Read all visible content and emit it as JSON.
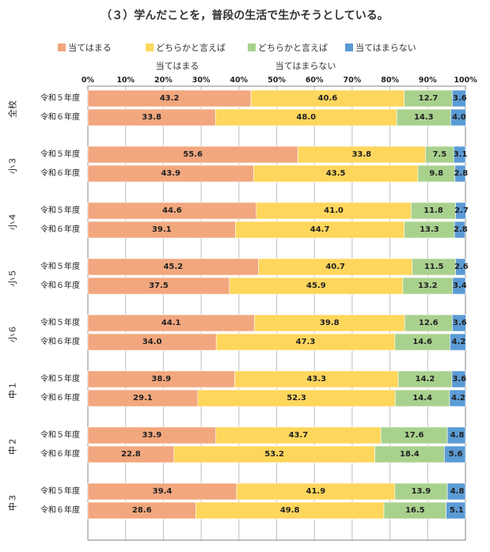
{
  "colors": {
    "s1": "#F2A77E",
    "s2": "#FFD65C",
    "s3": "#A9D18E",
    "s4": "#5B9BD5",
    "grid": "#BFBFBF",
    "border": "#808080"
  },
  "chart_data": {
    "type": "bar",
    "orientation": "horizontal-stacked",
    "title": "（３）学んだことを，普段の生活で生かそうとしている。",
    "legend": {
      "placement": "top",
      "entries": [
        "当てはまる",
        "どちらかと言えば",
        "どちらかと言えば",
        "当てはまらない"
      ]
    },
    "sub_labels": [
      "当てはまる",
      "当てはまらない"
    ],
    "x_ticks": [
      "0%",
      "10%",
      "20%",
      "30%",
      "40%",
      "50%",
      "60%",
      "70%",
      "80%",
      "90%",
      "100%"
    ],
    "xlim": [
      0,
      100
    ],
    "groups": [
      {
        "name": "全校",
        "rows": [
          {
            "label": "令和５年度",
            "values": [
              43.2,
              40.6,
              12.7,
              3.6
            ]
          },
          {
            "label": "令和６年度",
            "values": [
              33.8,
              48.0,
              14.3,
              4.0
            ]
          }
        ]
      },
      {
        "name": "小３",
        "rows": [
          {
            "label": "令和５年度",
            "values": [
              55.6,
              33.8,
              7.5,
              3.1
            ]
          },
          {
            "label": "令和６年度",
            "values": [
              43.9,
              43.5,
              9.8,
              2.8
            ]
          }
        ]
      },
      {
        "name": "小４",
        "rows": [
          {
            "label": "令和５年度",
            "values": [
              44.6,
              41.0,
              11.8,
              2.7
            ]
          },
          {
            "label": "令和６年度",
            "values": [
              39.1,
              44.7,
              13.3,
              2.8
            ]
          }
        ]
      },
      {
        "name": "小５",
        "rows": [
          {
            "label": "令和５年度",
            "values": [
              45.2,
              40.7,
              11.5,
              2.6
            ]
          },
          {
            "label": "令和６年度",
            "values": [
              37.5,
              45.9,
              13.2,
              3.4
            ]
          }
        ]
      },
      {
        "name": "小６",
        "rows": [
          {
            "label": "令和５年度",
            "values": [
              44.1,
              39.8,
              12.6,
              3.6
            ]
          },
          {
            "label": "令和６年度",
            "values": [
              34.0,
              47.3,
              14.6,
              4.2
            ]
          }
        ]
      },
      {
        "name": "中１",
        "rows": [
          {
            "label": "令和５年度",
            "values": [
              38.9,
              43.3,
              14.2,
              3.6
            ]
          },
          {
            "label": "令和６年度",
            "values": [
              29.1,
              52.3,
              14.4,
              4.2
            ]
          }
        ]
      },
      {
        "name": "中２",
        "rows": [
          {
            "label": "令和５年度",
            "values": [
              33.9,
              43.7,
              17.6,
              4.8
            ]
          },
          {
            "label": "令和６年度",
            "values": [
              22.8,
              53.2,
              18.4,
              5.6
            ]
          }
        ]
      },
      {
        "name": "中３",
        "rows": [
          {
            "label": "令和５年度",
            "values": [
              39.4,
              41.9,
              13.9,
              4.8
            ]
          },
          {
            "label": "令和６年度",
            "values": [
              28.6,
              49.8,
              16.5,
              5.1
            ]
          }
        ]
      }
    ]
  }
}
